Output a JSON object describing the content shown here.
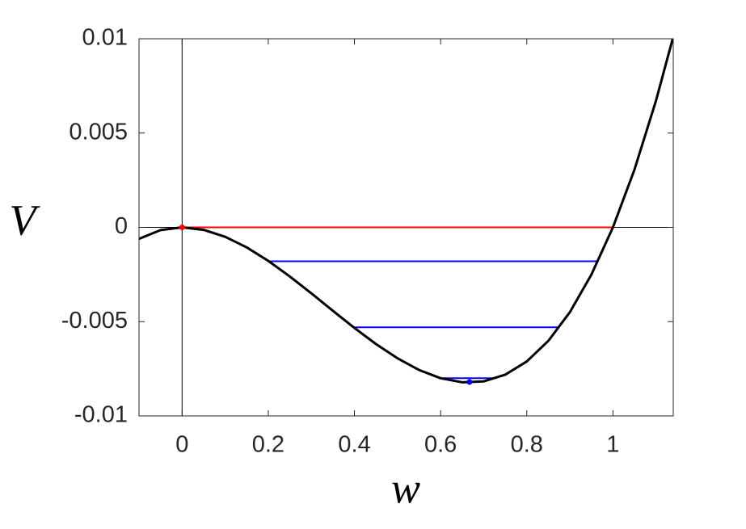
{
  "chart_data": {
    "type": "line",
    "x_label": "w",
    "y_label": "V",
    "xlim": [
      -0.1,
      1.14
    ],
    "ylim": [
      -0.01,
      0.01
    ],
    "xticks": [
      0,
      0.2,
      0.4,
      0.6,
      0.8,
      1
    ],
    "yticks": [
      -0.01,
      -0.005,
      0,
      0.005,
      0.01
    ],
    "axes_lines": {
      "x": 0,
      "y": 0
    },
    "series": [
      {
        "color": "#000000",
        "x": [
          -0.1,
          -0.05,
          0,
          0.05,
          0.1,
          0.15,
          0.2,
          0.25,
          0.3,
          0.35,
          0.4,
          0.45,
          0.5,
          0.55,
          0.6,
          0.65,
          0.7,
          0.75,
          0.8,
          0.85,
          0.9,
          0.95,
          1,
          1.05,
          1.1,
          1.14
        ],
        "values": [
          -0.000611,
          -0.000146,
          0,
          -0.000132,
          -0.0005,
          -0.001063,
          -0.001778,
          -0.002604,
          -0.0035,
          -0.004424,
          -0.005333,
          -0.006188,
          -0.006944,
          -0.007563,
          -0.008,
          -0.008215,
          -0.008167,
          -0.007813,
          -0.007111,
          -0.006021,
          -0.0045,
          -0.002507,
          0,
          0.003063,
          0.006722,
          0.010108
        ]
      }
    ],
    "segments": [
      {
        "y": 0,
        "x": [
          0,
          1
        ],
        "color": "#ff0000"
      },
      {
        "y": -0.0018,
        "x": [
          0.2,
          0.965
        ],
        "color": "#0000ff"
      },
      {
        "y": -0.0053,
        "x": [
          0.4,
          0.875
        ],
        "color": "#0000ff"
      },
      {
        "y": -0.008,
        "x": [
          0.6,
          0.73
        ],
        "color": "#0000ff"
      }
    ],
    "points": [
      {
        "x": 0,
        "y": 0,
        "color": "#ff0000"
      },
      {
        "x": 0.667,
        "y": -0.0082,
        "color": "#0000ff"
      }
    ]
  }
}
